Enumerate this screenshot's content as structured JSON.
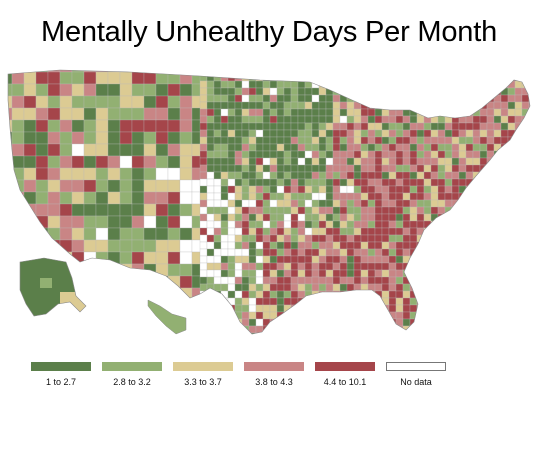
{
  "title": "Mentally Unhealthy Days Per Month",
  "legend": [
    {
      "label": "1 to 2.7",
      "color": "#5b7f4a"
    },
    {
      "label": "2.8 to 3.2",
      "color": "#92b072"
    },
    {
      "label": "3.3 to 3.7",
      "color": "#dccb93"
    },
    {
      "label": "3.8 to 4.3",
      "color": "#c98585"
    },
    {
      "label": "4.4 to 10.1",
      "color": "#a5454a"
    },
    {
      "label": "No data",
      "color": "#ffffff"
    }
  ],
  "county_border_color": "#bbbbbb"
}
